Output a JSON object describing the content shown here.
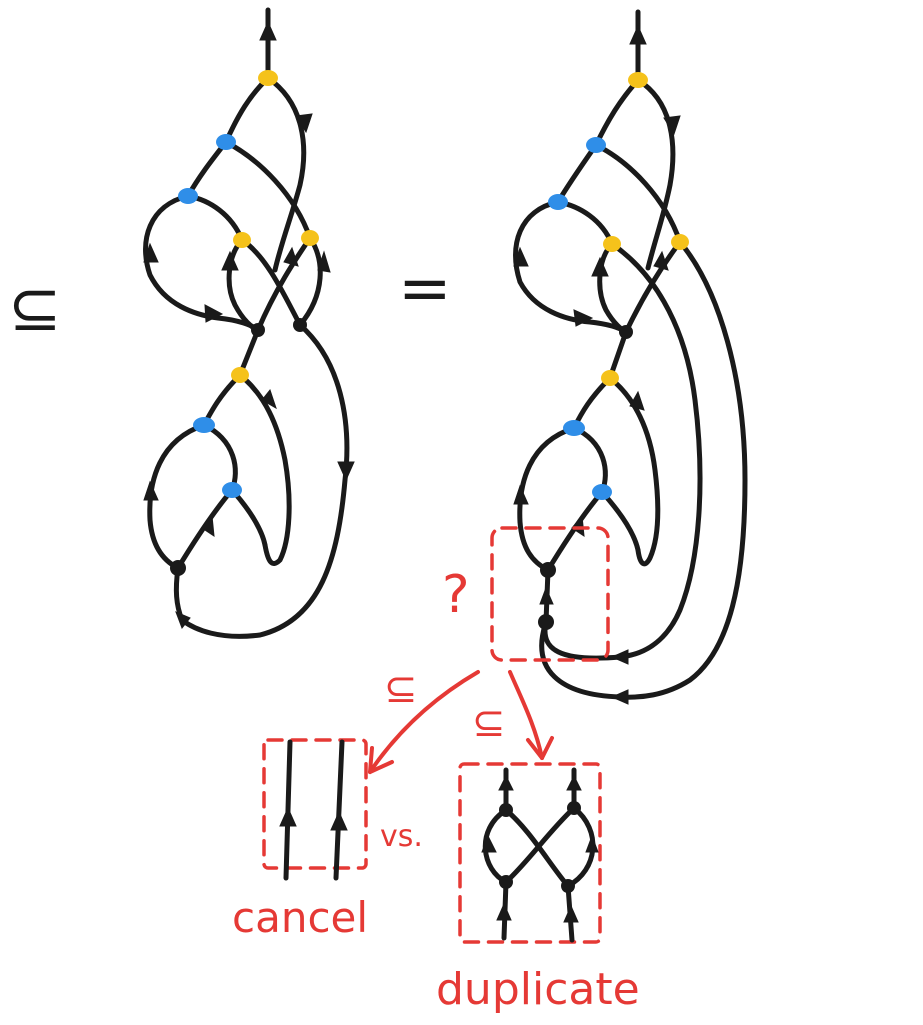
{
  "left_relation_symbol": "⊆",
  "middle_relation_symbol": "=",
  "question_mark": "?",
  "arrow_left_label": "⊆",
  "arrow_right_label": "⊆",
  "versus_label": "vs.",
  "option_left_label": "cancel",
  "option_right_label": "duplicate",
  "colors": {
    "ink": "#1a1a1a",
    "yellow_node": "#f5c21b",
    "blue_node": "#2f8ee8",
    "annotation_red": "#e53935"
  }
}
